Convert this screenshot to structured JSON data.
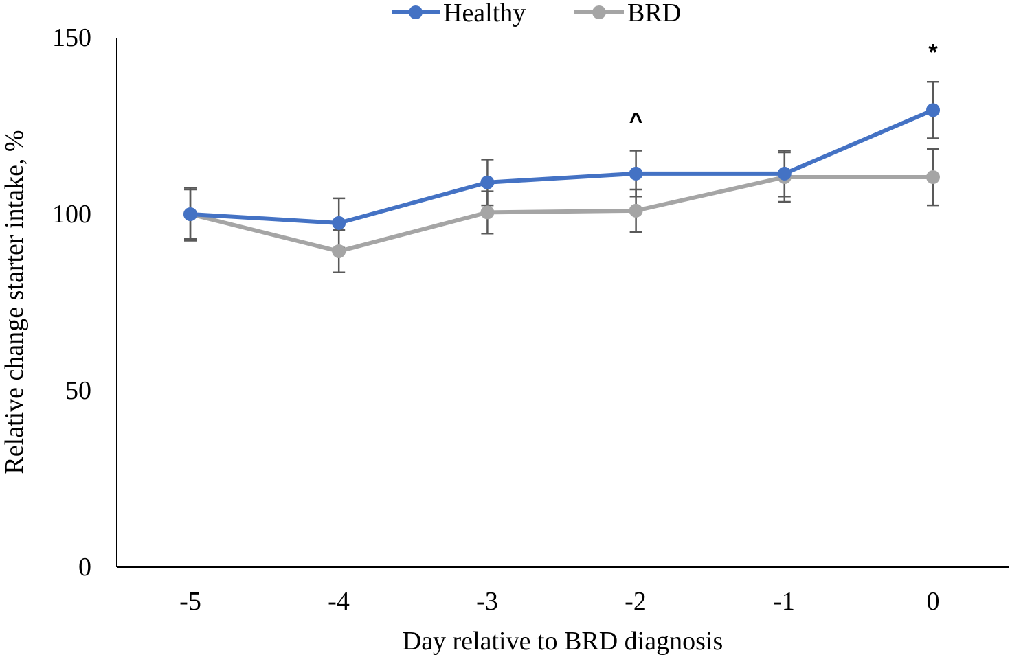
{
  "chart_data": {
    "type": "line",
    "xlabel": "Day relative to BRD diagnosis",
    "ylabel": "Relative change starter intake, %",
    "x": [
      "-5",
      "-4",
      "-3",
      "-2",
      "-1",
      "0"
    ],
    "ylim": [
      0,
      150
    ],
    "yticks": [
      "0",
      "50",
      "100",
      "150"
    ],
    "grid": false,
    "legend_position": "top-center",
    "series": [
      {
        "name": "Healthy",
        "color": "#4472C4",
        "values": [
          100,
          97.5,
          109,
          111.5,
          111.5,
          129.5
        ],
        "error": [
          7,
          7,
          6.5,
          6.5,
          6.5,
          8
        ]
      },
      {
        "name": "BRD",
        "color": "#A5A5A5",
        "values": [
          100,
          89.5,
          100.5,
          101,
          110.5,
          110.5
        ],
        "error": [
          7.5,
          6,
          6,
          6,
          7,
          8
        ]
      }
    ],
    "annotations": [
      {
        "x": "-2",
        "text": "^"
      },
      {
        "x": "0",
        "text": "*"
      }
    ],
    "error_bar_color": "#595959"
  }
}
